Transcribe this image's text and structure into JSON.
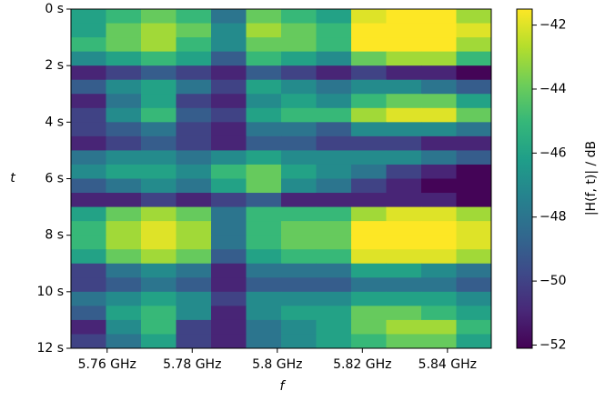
{
  "chart_data": {
    "type": "heatmap",
    "colormap": "viridis",
    "x_label": "f",
    "y_label": "t",
    "colorbar_label": "|H(f, t)| / dB",
    "xlim": [
      5.7515,
      5.8503
    ],
    "ylim": [
      0,
      12
    ],
    "xticks": [
      {
        "value": 5.76,
        "label": "5.76 GHz"
      },
      {
        "value": 5.78,
        "label": "5.78 GHz"
      },
      {
        "value": 5.8,
        "label": "5.8 GHz"
      },
      {
        "value": 5.82,
        "label": "5.82 GHz"
      },
      {
        "value": 5.84,
        "label": "5.84 GHz"
      }
    ],
    "yticks": [
      {
        "value": 0,
        "label": "0 s"
      },
      {
        "value": 2,
        "label": "2 s"
      },
      {
        "value": 4,
        "label": "4 s"
      },
      {
        "value": 6,
        "label": "6 s"
      },
      {
        "value": 8,
        "label": "8 s"
      },
      {
        "value": 10,
        "label": "10 s"
      },
      {
        "value": 12,
        "label": "12 s"
      }
    ],
    "clim": [
      -52.1,
      -41.5
    ],
    "cticks": [
      {
        "value": -42,
        "label": "−42"
      },
      {
        "value": -44,
        "label": "−44"
      },
      {
        "value": -46,
        "label": "−46"
      },
      {
        "value": -48,
        "label": "−48"
      },
      {
        "value": -50,
        "label": "−50"
      },
      {
        "value": -52,
        "label": "−52"
      }
    ],
    "z": [
      [
        -46,
        -45,
        -44,
        -45,
        -48,
        -44,
        -45,
        -46,
        -42,
        -41.5,
        -41.5,
        -43
      ],
      [
        -46,
        -44,
        -43,
        -44,
        -47,
        -43,
        -44,
        -45,
        -41.5,
        -41.5,
        -41.5,
        -42
      ],
      [
        -45,
        -44,
        -43,
        -45,
        -47,
        -44,
        -44,
        -45,
        -41.5,
        -41.5,
        -41.5,
        -43
      ],
      [
        -47,
        -46,
        -45,
        -46,
        -49,
        -45,
        -46,
        -47,
        -44,
        -43,
        -43,
        -45
      ],
      [
        -51,
        -50,
        -49,
        -50,
        -51,
        -49,
        -50,
        -51,
        -50,
        -51,
        -51,
        -52
      ],
      [
        -49,
        -47,
        -46,
        -48,
        -50,
        -46,
        -47,
        -48,
        -47,
        -47,
        -48,
        -49
      ],
      [
        -51,
        -48,
        -46,
        -50,
        -51,
        -47,
        -46,
        -47,
        -45,
        -44,
        -44,
        -46
      ],
      [
        -50,
        -47,
        -45,
        -49,
        -50,
        -46,
        -45,
        -45,
        -43,
        -42,
        -42,
        -44
      ],
      [
        -50,
        -49,
        -48,
        -50,
        -51,
        -48,
        -48,
        -49,
        -47,
        -47,
        -47,
        -48
      ],
      [
        -51,
        -50,
        -49,
        -50,
        -51,
        -49,
        -49,
        -50,
        -50,
        -50,
        -51,
        -51
      ],
      [
        -48,
        -47,
        -47,
        -48,
        -47,
        -46,
        -47,
        -47,
        -47,
        -47,
        -48,
        -49
      ],
      [
        -47,
        -46,
        -46,
        -47,
        -45,
        -44,
        -46,
        -47,
        -48,
        -50,
        -51,
        -52
      ],
      [
        -49,
        -48,
        -47,
        -48,
        -46,
        -44,
        -47,
        -48,
        -50,
        -51,
        -52,
        -52
      ],
      [
        -51,
        -51,
        -50,
        -51,
        -50,
        -49,
        -51,
        -51,
        -51,
        -51,
        -51,
        -52
      ],
      [
        -46,
        -44,
        -43,
        -44,
        -48,
        -45,
        -45,
        -45,
        -43,
        -42,
        -42,
        -43
      ],
      [
        -45,
        -43,
        -42,
        -43,
        -48,
        -45,
        -44,
        -44,
        -41.5,
        -41.5,
        -41.5,
        -42
      ],
      [
        -45,
        -43,
        -42,
        -43,
        -48,
        -45,
        -44,
        -44,
        -41.5,
        -41.5,
        -41.5,
        -42
      ],
      [
        -46,
        -44,
        -43,
        -44,
        -49,
        -46,
        -45,
        -45,
        -42,
        -42,
        -42,
        -43
      ],
      [
        -50,
        -48,
        -47,
        -48,
        -51,
        -48,
        -48,
        -48,
        -46,
        -46,
        -47,
        -48
      ],
      [
        -50,
        -49,
        -48,
        -49,
        -51,
        -49,
        -49,
        -49,
        -48,
        -48,
        -48,
        -49
      ],
      [
        -48,
        -47,
        -46,
        -47,
        -50,
        -47,
        -47,
        -47,
        -46,
        -46,
        -46,
        -47
      ],
      [
        -49,
        -46,
        -45,
        -47,
        -51,
        -47,
        -46,
        -46,
        -44,
        -44,
        -45,
        -46
      ],
      [
        -51,
        -47,
        -45,
        -50,
        -51,
        -48,
        -47,
        -46,
        -44,
        -43,
        -43,
        -45
      ],
      [
        -50,
        -48,
        -46,
        -50,
        -51,
        -48,
        -47,
        -46,
        -45,
        -44,
        -44,
        -46
      ]
    ]
  }
}
